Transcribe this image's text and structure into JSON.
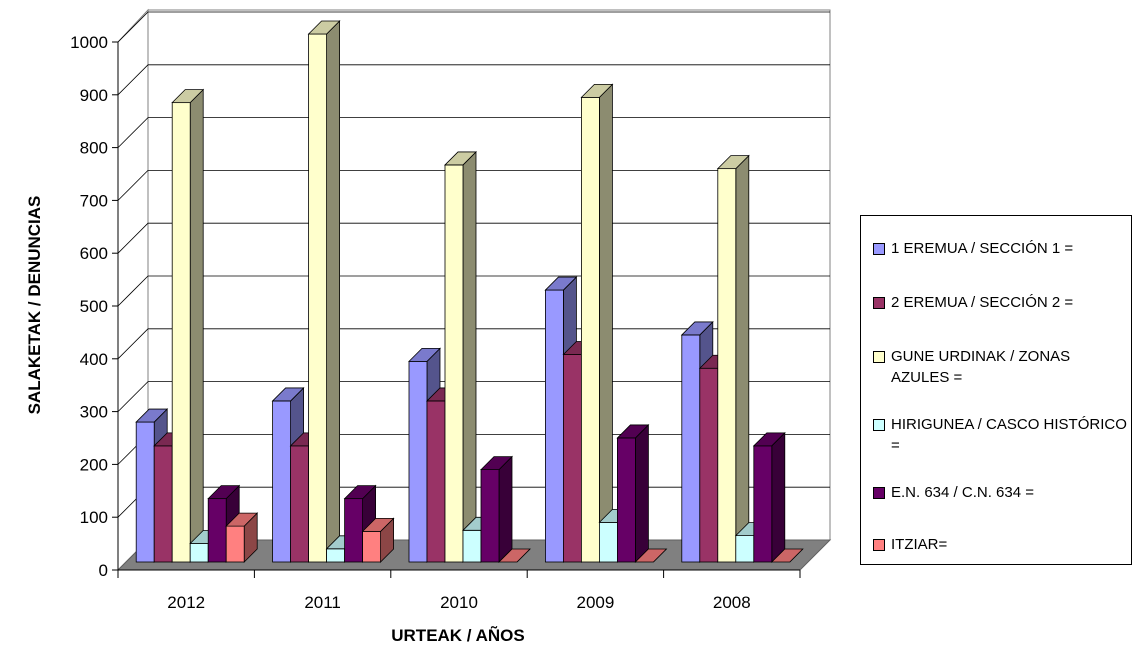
{
  "chart_data": {
    "type": "bar",
    "variant": "3d-clustered-column",
    "title": "",
    "xlabel": "URTEAK / AÑOS",
    "ylabel": "SALAKETAK / DENUNCIAS",
    "ylim": [
      0,
      1000
    ],
    "yticks": [
      "0",
      "100",
      "200",
      "300",
      "400",
      "500",
      "600",
      "700",
      "800",
      "900",
      "1000"
    ],
    "categories": [
      "2012",
      "2011",
      "2010",
      "2009",
      "2008"
    ],
    "grid": true,
    "legend_position": "right",
    "series": [
      {
        "name": "1 EREMUA / SECCIÓN 1 =",
        "color": "#9999ff",
        "values": [
          265,
          305,
          380,
          515,
          430
        ]
      },
      {
        "name": "2 EREMUA / SECCIÓN 2 =",
        "color": "#993366",
        "values": [
          220,
          220,
          305,
          393,
          367
        ]
      },
      {
        "name": "GUNE URDINAK / ZONAS AZULES =",
        "color": "#ffffcc",
        "values": [
          870,
          1000,
          752,
          880,
          745
        ]
      },
      {
        "name": "HIRIGUNEA / CASCO HISTÓRICO =",
        "color": "#ccffff",
        "values": [
          35,
          25,
          60,
          75,
          50
        ]
      },
      {
        "name": "E.N. 634 / C.N. 634 =",
        "color": "#660066",
        "values": [
          120,
          120,
          175,
          235,
          220
        ]
      },
      {
        "name": "ITZIAR=",
        "color": "#ff8080",
        "values": [
          68,
          58,
          0,
          0,
          0
        ]
      }
    ]
  }
}
